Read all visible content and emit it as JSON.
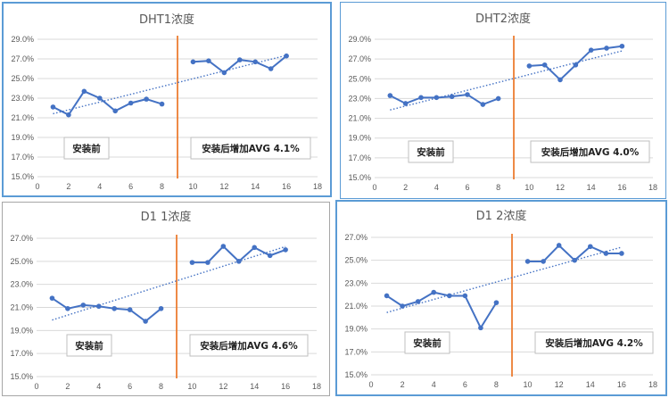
{
  "chart_data": [
    {
      "type": "line",
      "title": "DHT1浓度",
      "x": [
        1,
        2,
        3,
        4,
        5,
        6,
        7,
        8,
        10,
        11,
        12,
        13,
        14,
        15,
        16
      ],
      "series": [
        {
          "values": [
            22.1,
            21.3,
            23.7,
            23.0,
            21.7,
            22.5,
            22.9,
            22.4,
            26.7,
            26.8,
            25.6,
            26.9,
            26.7,
            26.0,
            27.3
          ]
        }
      ],
      "xlim": [
        0,
        18
      ],
      "ylim": [
        15,
        29
      ],
      "xticks": [
        "0",
        "2",
        "4",
        "6",
        "8",
        "10",
        "12",
        "14",
        "16",
        "18"
      ],
      "yticks": [
        "15.0%",
        "17.0%",
        "19.0%",
        "21.0%",
        "23.0%",
        "25.0%",
        "27.0%",
        "29.0%"
      ],
      "trendline": "linear",
      "divider_x": 9,
      "grid": "horizontal",
      "annotations": [
        "安装前",
        "安装后增加AVG 4.1%"
      ]
    },
    {
      "type": "line",
      "title": "DHT2浓度",
      "x": [
        1,
        2,
        3,
        4,
        5,
        6,
        7,
        8,
        10,
        11,
        12,
        13,
        14,
        15,
        16
      ],
      "series": [
        {
          "values": [
            23.3,
            22.5,
            23.1,
            23.1,
            23.2,
            23.4,
            22.4,
            23.0,
            26.3,
            26.4,
            24.9,
            26.4,
            27.9,
            28.1,
            28.3
          ]
        }
      ],
      "xlim": [
        0,
        18
      ],
      "ylim": [
        15,
        29
      ],
      "xticks": [
        "0",
        "2",
        "4",
        "6",
        "8",
        "10",
        "12",
        "14",
        "16",
        "18"
      ],
      "yticks": [
        "15.0%",
        "17.0%",
        "19.0%",
        "21.0%",
        "23.0%",
        "25.0%",
        "27.0%",
        "29.0%"
      ],
      "trendline": "linear",
      "divider_x": 9,
      "grid": "horizontal",
      "annotations": [
        "安装前",
        "安装后增加AVG 4.0%"
      ]
    },
    {
      "type": "line",
      "title": "D1 1浓度",
      "x": [
        1,
        2,
        3,
        4,
        5,
        6,
        7,
        8,
        10,
        11,
        12,
        13,
        14,
        15,
        16
      ],
      "series": [
        {
          "values": [
            21.8,
            20.9,
            21.2,
            21.1,
            20.9,
            20.8,
            19.8,
            20.9,
            24.9,
            24.9,
            26.3,
            25.0,
            26.2,
            25.5,
            26.0
          ]
        }
      ],
      "xlim": [
        0,
        18
      ],
      "ylim": [
        15,
        27
      ],
      "xticks": [
        "0",
        "2",
        "4",
        "6",
        "8",
        "10",
        "12",
        "14",
        "16",
        "18"
      ],
      "yticks": [
        "15.0%",
        "17.0%",
        "19.0%",
        "21.0%",
        "23.0%",
        "25.0%",
        "27.0%"
      ],
      "trendline": "linear",
      "divider_x": 9,
      "grid": "horizontal",
      "annotations": [
        "安装前",
        "安装后增加AVG 4.6%"
      ]
    },
    {
      "type": "line",
      "title": "D1 2浓度",
      "x": [
        1,
        2,
        3,
        4,
        5,
        6,
        7,
        8,
        10,
        11,
        12,
        13,
        14,
        15,
        16
      ],
      "series": [
        {
          "values": [
            21.9,
            21.0,
            21.4,
            22.2,
            21.9,
            21.9,
            19.1,
            21.3,
            24.9,
            24.9,
            26.3,
            25.0,
            26.2,
            25.6,
            25.6
          ]
        }
      ],
      "xlim": [
        0,
        18
      ],
      "ylim": [
        15,
        27
      ],
      "xticks": [
        "0",
        "2",
        "4",
        "6",
        "8",
        "10",
        "12",
        "14",
        "16",
        "18"
      ],
      "yticks": [
        "15.0%",
        "17.0%",
        "19.0%",
        "21.0%",
        "23.0%",
        "25.0%",
        "27.0%"
      ],
      "trendline": "linear",
      "divider_x": 9,
      "grid": "horizontal",
      "annotations": [
        "安装前",
        "安装后增加AVG 4.2%"
      ]
    }
  ],
  "colors": {
    "series": "#4472c4",
    "divider": "#ed7d31",
    "panel_border": "#5b9bd5",
    "grid": "#d9d9d9",
    "text": "#595959"
  }
}
